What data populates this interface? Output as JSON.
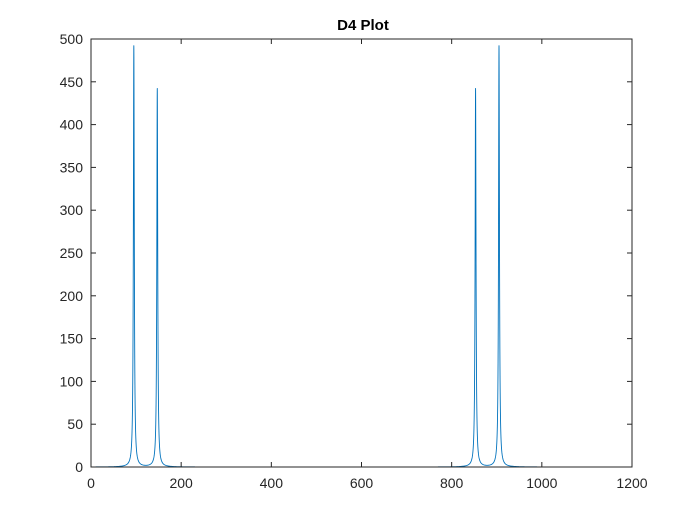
{
  "chart_data": {
    "type": "line",
    "title": "D4 Plot",
    "xlabel": "",
    "ylabel": "",
    "xlim": [
      0,
      1200
    ],
    "ylim": [
      0,
      500
    ],
    "xticks": [
      0,
      200,
      400,
      600,
      800,
      1000,
      1200
    ],
    "yticks": [
      0,
      50,
      100,
      150,
      200,
      250,
      300,
      350,
      400,
      450,
      500
    ],
    "grid": false,
    "box": true,
    "line_color": "#0072BD",
    "series": [
      {
        "x": [
          1,
          95,
          147,
          853,
          905,
          1000
        ],
        "peaks": [
          {
            "x": 95,
            "y": 492
          },
          {
            "x": 147,
            "y": 442
          },
          {
            "x": 853,
            "y": 442
          },
          {
            "x": 905,
            "y": 492
          }
        ],
        "baseline": 0
      }
    ]
  }
}
